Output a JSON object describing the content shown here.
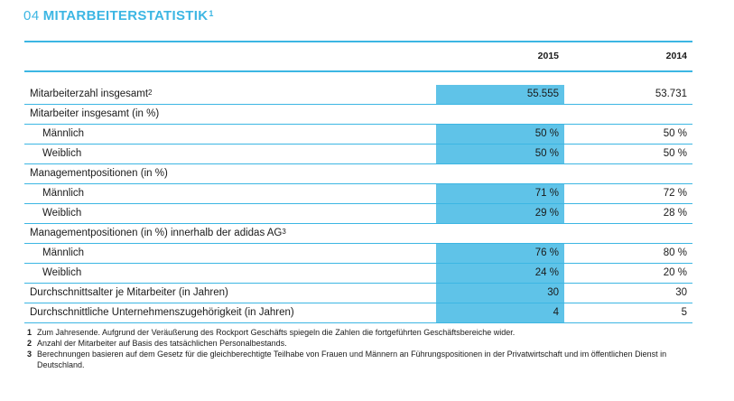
{
  "heading": {
    "number": "04",
    "title": "MITARBEITERSTATISTIK",
    "footnote": "1"
  },
  "table": {
    "columns": [
      "2015",
      "2014"
    ],
    "rows": [
      {
        "label": "Mitarbeiterzahl insgesamt",
        "footnote": "2",
        "values": [
          "55.555",
          "53.731"
        ],
        "sub": false
      },
      {
        "label": "Mitarbeiter insgesamt (in %)",
        "footnote": "",
        "values": [
          "",
          ""
        ],
        "sub": false
      },
      {
        "label": "Männlich",
        "footnote": "",
        "values": [
          "50 %",
          "50 %"
        ],
        "sub": true
      },
      {
        "label": "Weiblich",
        "footnote": "",
        "values": [
          "50 %",
          "50 %"
        ],
        "sub": true
      },
      {
        "label": "Managementpositionen (in %)",
        "footnote": "",
        "values": [
          "",
          ""
        ],
        "sub": false
      },
      {
        "label": "Männlich",
        "footnote": "",
        "values": [
          "71 %",
          "72 %"
        ],
        "sub": true
      },
      {
        "label": "Weiblich",
        "footnote": "",
        "values": [
          "29 %",
          "28 %"
        ],
        "sub": true
      },
      {
        "label": "Managementpositionen (in %) innerhalb der adidas AG",
        "footnote": "3",
        "values": [
          "",
          ""
        ],
        "sub": false
      },
      {
        "label": "Männlich",
        "footnote": "",
        "values": [
          "76 %",
          "80 %"
        ],
        "sub": true
      },
      {
        "label": "Weiblich",
        "footnote": "",
        "values": [
          "24 %",
          "20 %"
        ],
        "sub": true
      },
      {
        "label": "Durchschnittsalter je Mitarbeiter (in Jahren)",
        "footnote": "",
        "values": [
          "30",
          "30"
        ],
        "sub": false
      },
      {
        "label": "Durchschnittliche Unternehmenszugehörigkeit (in Jahren)",
        "footnote": "",
        "values": [
          "4",
          "5"
        ],
        "sub": false
      }
    ]
  },
  "footnotes": [
    {
      "n": "1",
      "text": "Zum Jahresende. Aufgrund der Veräußerung des Rockport Geschäfts spiegeln die Zahlen die fortgeführten Geschäftsbereiche wider."
    },
    {
      "n": "2",
      "text": "Anzahl der Mitarbeiter auf Basis des tatsächlichen Personalbestands."
    },
    {
      "n": "3",
      "text": "Berechnungen basieren auf dem Gesetz für die gleichberechtigte Teilhabe von Frauen und Männern an Führungspositionen in der Privatwirtschaft und im öffentlichen Dienst in Deutschland."
    }
  ],
  "colors": {
    "accent": "#3cb6e3",
    "highlight": "#5fc3e8"
  }
}
